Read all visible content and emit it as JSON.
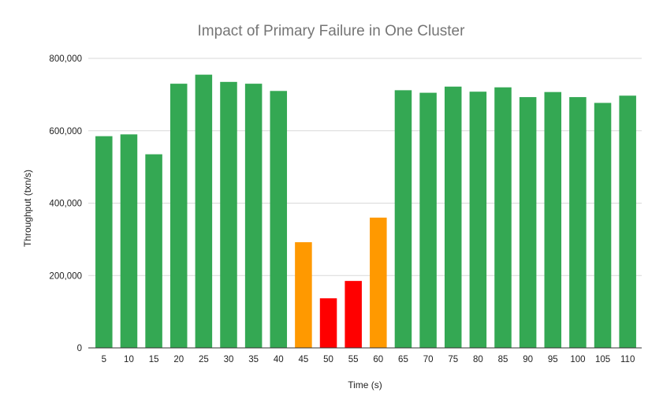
{
  "chart_data": {
    "type": "bar",
    "title": "Impact of Primary Failure in One Cluster",
    "xlabel": "Time (s)",
    "ylabel": "Throughput (txn/s)",
    "ylim": [
      0,
      800000
    ],
    "yticks": [
      0,
      200000,
      400000,
      600000,
      800000
    ],
    "ytick_labels": [
      "0",
      "200,000",
      "400,000",
      "600,000",
      "800,000"
    ],
    "grid": true,
    "legend": "none",
    "categories": [
      "5",
      "10",
      "15",
      "20",
      "25",
      "30",
      "35",
      "40",
      "45",
      "50",
      "55",
      "60",
      "65",
      "70",
      "75",
      "80",
      "85",
      "90",
      "95",
      "100",
      "105",
      "110"
    ],
    "values": [
      585000,
      590000,
      535000,
      730000,
      755000,
      735000,
      730000,
      710000,
      292000,
      137000,
      185000,
      360000,
      712000,
      705000,
      722000,
      708000,
      720000,
      693000,
      707000,
      693000,
      677000,
      697000
    ],
    "bar_colors": [
      "#34a853",
      "#34a853",
      "#34a853",
      "#34a853",
      "#34a853",
      "#34a853",
      "#34a853",
      "#34a853",
      "#ff9900",
      "#ff0000",
      "#ff0000",
      "#ff9900",
      "#34a853",
      "#34a853",
      "#34a853",
      "#34a853",
      "#34a853",
      "#34a853",
      "#34a853",
      "#34a853",
      "#34a853",
      "#34a853"
    ]
  }
}
